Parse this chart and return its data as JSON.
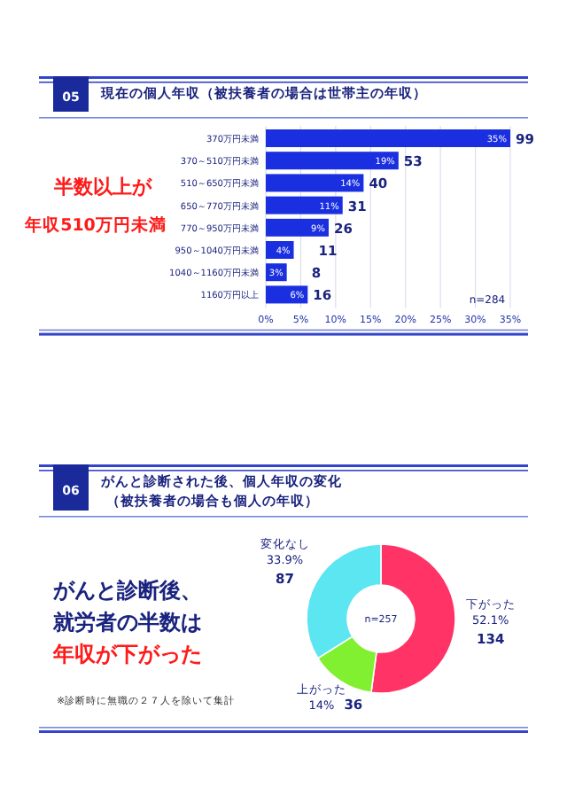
{
  "chart_data": [
    {
      "type": "bar",
      "orientation": "horizontal",
      "title": "現在の個人年収（被扶養者の場合は世帯主の年収）",
      "categories": [
        "370万円未満",
        "370～510万円未満",
        "510～650万円未満",
        "650～770万円未満",
        "770～950万円未満",
        "950～1040万円未満",
        "1040～1160万円未満",
        "1160万円以上"
      ],
      "values": [
        35,
        19,
        14,
        11,
        9,
        4,
        3,
        6
      ],
      "value_labels": [
        "35%",
        "19%",
        "14%",
        "11%",
        "9%",
        "4%",
        "3%",
        "6%"
      ],
      "color": "#1a2fe0",
      "xlim": [
        0,
        35
      ],
      "xticks": [
        {
          "value": 0,
          "label": "0%"
        },
        {
          "value": 5,
          "label": "5%"
        },
        {
          "value": 10,
          "label": "10%"
        },
        {
          "value": 15,
          "label": "15%"
        },
        {
          "value": 20,
          "label": "20%"
        },
        {
          "value": 25,
          "label": "25%"
        },
        {
          "value": 30,
          "label": "30%"
        },
        {
          "value": 35,
          "label": "35%"
        }
      ],
      "grid": "x",
      "annotations": [
        "05",
        "半数以上が",
        "年収510万円未満",
        "n=284",
        {
          "text": "99",
          "x": 35,
          "y": "370万円未満"
        },
        {
          "text": "53",
          "x": 19,
          "y": "370～510万円未満"
        },
        {
          "text": "40",
          "x": 14,
          "y": "510～650万円未満"
        },
        {
          "text": "31",
          "x": 11,
          "y": "650～770万円未満"
        },
        {
          "text": "26",
          "x": 9,
          "y": "770～950万円未満"
        },
        {
          "text": "11",
          "x": 4,
          "y": "950～1040万円未満"
        },
        {
          "text": "8",
          "x": 3,
          "y": "1040～1160万円未満"
        },
        {
          "text": "16",
          "x": 6,
          "y": "1160万円以上"
        }
      ]
    },
    {
      "type": "donut",
      "title": "がんと診断された後、個人年収の変化",
      "subtitle": "（被扶養者の場合も個人の年収）",
      "categories": [
        "下がった",
        "上がった",
        "変化なし"
      ],
      "values": [
        52.1,
        14,
        33.9
      ],
      "value_labels": [
        "52.1%",
        "14%",
        "33.9%"
      ],
      "colors": [
        "#ff3366",
        "#80f030",
        "#5ce6f2"
      ],
      "annotations": [
        "06",
        "がんと診断後、",
        "就労者の半数は",
        "年収が下がった",
        "n=257",
        "※診断時に無職の２７人を除いて集計",
        {
          "text": "134",
          "x": "下がった"
        },
        {
          "text": "36",
          "x": "上がった"
        },
        {
          "text": "87",
          "x": "変化なし"
        }
      ]
    }
  ]
}
